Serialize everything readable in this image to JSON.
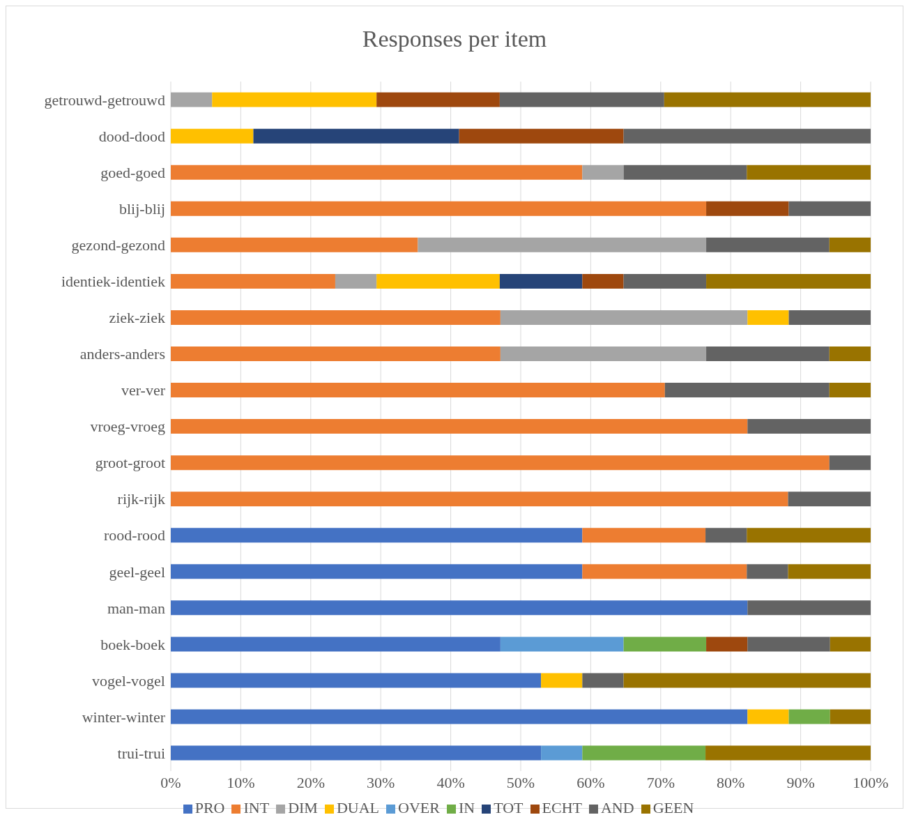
{
  "chart_data": {
    "type": "bar",
    "orientation": "horizontal",
    "stacked": true,
    "title": "Responses per item",
    "categories": [
      "getrouwd-getrouwd",
      "dood-dood",
      "goed-goed",
      "blij-blij",
      "gezond-gezond",
      "identiek-identiek",
      "ziek-ziek",
      "anders-anders",
      "ver-ver",
      "vroeg-vroeg",
      "groot-groot",
      "rijk-rijk",
      "rood-rood",
      "geel-geel",
      "man-man",
      "boek-boek",
      "vogel-vogel",
      "winter-winter",
      "trui-trui"
    ],
    "series": [
      {
        "name": "PRO",
        "color": "#4472c4",
        "values": [
          null,
          null,
          null,
          null,
          null,
          null,
          null,
          null,
          null,
          null,
          null,
          null,
          58.8,
          58.8,
          82.4,
          47.1,
          52.9,
          82.4,
          52.9
        ]
      },
      {
        "name": "INT",
        "color": "#ed7d31",
        "values": [
          null,
          null,
          58.8,
          76.5,
          35.3,
          23.5,
          47.1,
          47.1,
          70.6,
          82.4,
          94.1,
          88.2,
          17.6,
          23.5,
          null,
          null,
          null,
          null,
          null
        ]
      },
      {
        "name": "DIM",
        "color": "#a5a5a5",
        "values": [
          5.9,
          null,
          5.9,
          null,
          41.2,
          5.9,
          35.3,
          29.4,
          null,
          null,
          null,
          null,
          null,
          null,
          null,
          null,
          null,
          null,
          null
        ]
      },
      {
        "name": "DUAL",
        "color": "#ffc000",
        "values": [
          23.5,
          11.8,
          null,
          null,
          null,
          17.6,
          5.9,
          null,
          null,
          null,
          null,
          null,
          null,
          null,
          null,
          null,
          5.9,
          5.9,
          null
        ]
      },
      {
        "name": "OVER",
        "color": "#5b9bd5",
        "values": [
          null,
          null,
          null,
          null,
          null,
          null,
          null,
          null,
          null,
          null,
          null,
          null,
          null,
          null,
          null,
          17.6,
          null,
          null,
          5.9
        ]
      },
      {
        "name": "IN",
        "color": "#70ad47",
        "values": [
          null,
          null,
          null,
          null,
          null,
          null,
          null,
          null,
          null,
          null,
          null,
          null,
          null,
          null,
          null,
          11.8,
          null,
          5.9,
          17.6
        ]
      },
      {
        "name": "TOT",
        "color": "#264478",
        "values": [
          null,
          29.4,
          null,
          null,
          null,
          11.8,
          null,
          null,
          null,
          null,
          null,
          null,
          null,
          null,
          null,
          null,
          null,
          null,
          null
        ]
      },
      {
        "name": "ECHT",
        "color": "#9e480e",
        "values": [
          17.6,
          23.5,
          null,
          11.8,
          null,
          5.9,
          null,
          null,
          null,
          null,
          null,
          null,
          null,
          null,
          null,
          5.9,
          null,
          null,
          null
        ]
      },
      {
        "name": "AND",
        "color": "#636363",
        "values": [
          23.5,
          35.3,
          17.6,
          11.7,
          17.6,
          11.8,
          11.7,
          17.6,
          23.5,
          17.6,
          5.9,
          11.8,
          5.9,
          5.9,
          17.6,
          11.8,
          5.9,
          null,
          null
        ]
      },
      {
        "name": "GEEN",
        "color": "#997300",
        "values": [
          29.5,
          null,
          17.7,
          null,
          5.9,
          23.5,
          null,
          5.9,
          5.9,
          null,
          null,
          null,
          17.7,
          11.8,
          null,
          5.8,
          35.3,
          5.8,
          23.6
        ]
      }
    ],
    "xlim": [
      0,
      100
    ],
    "xticks": [
      {
        "value": 0,
        "label": "0%"
      },
      {
        "value": 10,
        "label": "10%"
      },
      {
        "value": 20,
        "label": "20%"
      },
      {
        "value": 30,
        "label": "30%"
      },
      {
        "value": 40,
        "label": "40%"
      },
      {
        "value": 50,
        "label": "50%"
      },
      {
        "value": 60,
        "label": "60%"
      },
      {
        "value": 70,
        "label": "70%"
      },
      {
        "value": 80,
        "label": "80%"
      },
      {
        "value": 90,
        "label": "90%"
      },
      {
        "value": 100,
        "label": "100%"
      }
    ],
    "grid": "x",
    "legend": "bottom"
  }
}
